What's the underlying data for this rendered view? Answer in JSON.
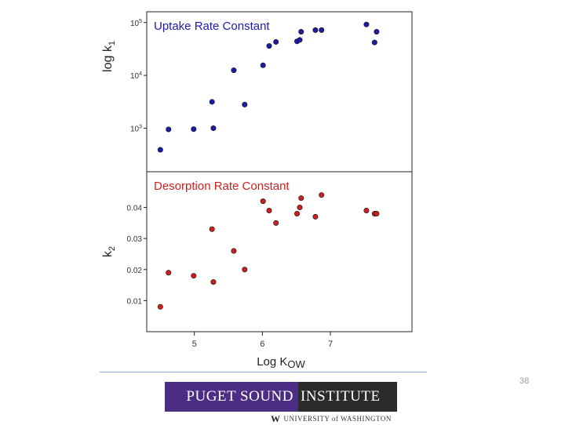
{
  "chart_data": {
    "type": "scatter",
    "xlabel": "Log K",
    "xlabel_subscript": "OW",
    "xlim": [
      4.3,
      8.2
    ],
    "xticks": [
      "5",
      "6",
      "7"
    ],
    "panels": [
      {
        "title": "Uptake Rate Constant",
        "ylabel": "log k",
        "ylabel_subscript": "1",
        "yscale": "log",
        "ylim": [
          150,
          160000
        ],
        "yticks": [
          {
            "value": 1000,
            "base": "10",
            "exp": "3"
          },
          {
            "value": 10000,
            "base": "10",
            "exp": "4"
          },
          {
            "value": 100000,
            "base": "10",
            "exp": "5"
          }
        ],
        "color": "#1c1ca8",
        "points": [
          {
            "x": 4.5,
            "y": 390
          },
          {
            "x": 4.62,
            "y": 950
          },
          {
            "x": 4.99,
            "y": 960
          },
          {
            "x": 5.26,
            "y": 3150
          },
          {
            "x": 5.28,
            "y": 1000
          },
          {
            "x": 5.58,
            "y": 12500
          },
          {
            "x": 5.74,
            "y": 2800
          },
          {
            "x": 6.01,
            "y": 15500
          },
          {
            "x": 6.1,
            "y": 36000
          },
          {
            "x": 6.2,
            "y": 43000
          },
          {
            "x": 6.51,
            "y": 44000
          },
          {
            "x": 6.55,
            "y": 47000
          },
          {
            "x": 6.57,
            "y": 67000
          },
          {
            "x": 6.78,
            "y": 72000
          },
          {
            "x": 6.87,
            "y": 72000
          },
          {
            "x": 7.53,
            "y": 92000
          },
          {
            "x": 7.65,
            "y": 42000
          },
          {
            "x": 7.68,
            "y": 67000
          }
        ]
      },
      {
        "title": "Desorption Rate Constant",
        "ylabel": "k",
        "ylabel_subscript": "2",
        "yscale": "linear",
        "ylim": [
          0.0,
          0.0515
        ],
        "yticks": [
          {
            "value": 0.01,
            "label": "0.01"
          },
          {
            "value": 0.02,
            "label": "0.02"
          },
          {
            "value": 0.03,
            "label": "0.03"
          },
          {
            "value": 0.04,
            "label": "0.04"
          }
        ],
        "color": "#cc1f1f",
        "points": [
          {
            "x": 4.5,
            "y": 0.008
          },
          {
            "x": 4.62,
            "y": 0.019
          },
          {
            "x": 4.99,
            "y": 0.018
          },
          {
            "x": 5.26,
            "y": 0.033
          },
          {
            "x": 5.28,
            "y": 0.016
          },
          {
            "x": 5.58,
            "y": 0.026
          },
          {
            "x": 5.74,
            "y": 0.02
          },
          {
            "x": 6.01,
            "y": 0.042
          },
          {
            "x": 6.1,
            "y": 0.039
          },
          {
            "x": 6.2,
            "y": 0.035
          },
          {
            "x": 6.51,
            "y": 0.038
          },
          {
            "x": 6.55,
            "y": 0.04
          },
          {
            "x": 6.57,
            "y": 0.043
          },
          {
            "x": 6.78,
            "y": 0.037
          },
          {
            "x": 6.87,
            "y": 0.044
          },
          {
            "x": 7.53,
            "y": 0.039
          },
          {
            "x": 7.65,
            "y": 0.038
          },
          {
            "x": 7.68,
            "y": 0.038
          }
        ]
      }
    ]
  },
  "footer": {
    "logo_left": "PUGET SOUND",
    "logo_right": "INSTITUTE",
    "uw_mark": "W",
    "uw_text": "UNIVERSITY of WASHINGTON",
    "page_number": "38"
  }
}
